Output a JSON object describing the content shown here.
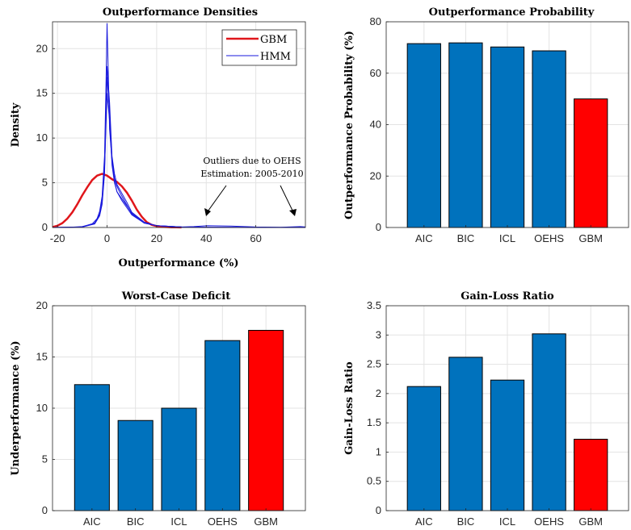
{
  "colors": {
    "blue": "#0072bd",
    "red": "#ff0000",
    "gbm_line": "#e0161b",
    "hmm_line": "#1a1add"
  },
  "chart_data": [
    {
      "id": "densities",
      "type": "line",
      "title": "Outperformance Densities",
      "xlabel": "Outperformance (%)",
      "ylabel": "Density",
      "xlim": [
        -22,
        80
      ],
      "ylim": [
        0,
        23
      ],
      "xticks": [
        "-20",
        "0",
        "20",
        "40",
        "60"
      ],
      "xtick_values": [
        -20,
        0,
        20,
        40,
        60
      ],
      "yticks": [
        "0",
        "5",
        "10",
        "15",
        "20"
      ],
      "ytick_values": [
        0,
        5,
        10,
        15,
        20
      ],
      "grid": true,
      "legend": {
        "placement": "top-right",
        "entries": [
          "GBM",
          "HMM"
        ]
      },
      "annotation": {
        "lines": [
          "Outliers due to OEHS",
          "Estimation: 2005-2010"
        ],
        "arrow_targets": [
          [
            37,
            0.5
          ],
          [
            77,
            0.5
          ]
        ]
      },
      "series": [
        {
          "name": "GBM",
          "color": "#e0161b",
          "x": [
            -22,
            -20,
            -18,
            -16,
            -14,
            -12,
            -10,
            -8,
            -6,
            -4,
            -2,
            0,
            2,
            4,
            6,
            8,
            10,
            12,
            14,
            16,
            18,
            20,
            22,
            24,
            26,
            28,
            30
          ],
          "y": [
            0.05,
            0.2,
            0.5,
            1.0,
            1.7,
            2.6,
            3.6,
            4.5,
            5.3,
            5.8,
            6.0,
            5.8,
            5.4,
            5.1,
            4.6,
            3.9,
            3.0,
            2.0,
            1.2,
            0.6,
            0.3,
            0.15,
            0.08,
            0.05,
            0.03,
            0.02,
            0.01
          ]
        },
        {
          "name": "HMM",
          "color": "#1a1add",
          "x": [
            -22,
            -15,
            -10,
            -6,
            -4,
            -3,
            -2,
            -1,
            -0.5,
            0,
            0.5,
            1,
            2,
            3,
            4,
            5,
            6,
            8,
            10,
            15,
            20,
            30,
            35,
            40,
            50,
            60,
            70,
            78,
            80
          ],
          "y": [
            0,
            0.02,
            0.1,
            0.4,
            1.0,
            1.8,
            3.5,
            8.0,
            15.0,
            22.8,
            17.5,
            11.0,
            7.5,
            5.5,
            4.6,
            4.0,
            3.5,
            2.5,
            1.5,
            0.5,
            0.2,
            0.05,
            0.1,
            0.2,
            0.15,
            0.05,
            0.02,
            0.1,
            0.05
          ]
        },
        {
          "name": "HMM",
          "color": "#1a1add",
          "x": [
            -22,
            -10,
            -5,
            -3,
            -2,
            -1,
            0,
            1,
            2,
            3,
            4,
            6,
            8,
            10,
            15,
            20,
            30,
            40,
            60,
            80
          ],
          "y": [
            0,
            0.05,
            0.5,
            1.5,
            3.0,
            7.0,
            18.0,
            14.0,
            8.0,
            6.0,
            4.8,
            3.8,
            2.8,
            1.7,
            0.6,
            0.2,
            0.05,
            0.02,
            0.01,
            0
          ]
        },
        {
          "name": "HMM",
          "color": "#1a1add",
          "x": [
            -22,
            -10,
            -5,
            -3,
            -2,
            -1,
            0,
            1,
            2,
            3,
            4,
            6,
            8,
            10,
            15,
            20,
            30,
            40,
            60,
            80
          ],
          "y": [
            0,
            0.05,
            0.4,
            1.3,
            2.6,
            6.0,
            16.8,
            13.0,
            7.5,
            5.2,
            4.0,
            3.0,
            2.2,
            1.4,
            0.5,
            0.2,
            0.05,
            0.02,
            0.01,
            0
          ]
        },
        {
          "name": "HMM",
          "color": "#1a1add",
          "x": [
            -22,
            -10,
            -5,
            -3,
            -2,
            -1,
            0,
            1,
            2,
            3,
            4,
            6,
            8,
            10,
            15,
            20,
            30,
            40,
            60,
            80
          ],
          "y": [
            0,
            0.05,
            0.5,
            1.4,
            2.8,
            6.5,
            15.0,
            12.0,
            7.0,
            5.0,
            4.0,
            3.2,
            2.4,
            1.6,
            0.5,
            0.2,
            0.05,
            0.02,
            0.01,
            0
          ]
        }
      ]
    },
    {
      "id": "probability",
      "type": "bar",
      "title": "Outperformance Probability",
      "xlabel": "",
      "ylabel": "Outperformance Probability (%)",
      "categories": [
        "AIC",
        "BIC",
        "ICL",
        "OEHS",
        "GBM"
      ],
      "values": [
        71.5,
        71.8,
        70.2,
        68.7,
        50.0
      ],
      "bar_colors": [
        "#0072bd",
        "#0072bd",
        "#0072bd",
        "#0072bd",
        "#ff0000"
      ],
      "ylim": [
        0,
        80
      ],
      "yticks": [
        "0",
        "20",
        "40",
        "60",
        "80"
      ],
      "ytick_values": [
        0,
        20,
        40,
        60,
        80
      ],
      "grid": true
    },
    {
      "id": "deficit",
      "type": "bar",
      "title": "Worst-Case Deficit",
      "xlabel": "",
      "ylabel": "Underperformance (%)",
      "categories": [
        "AIC",
        "BIC",
        "ICL",
        "OEHS",
        "GBM"
      ],
      "values": [
        12.3,
        8.8,
        10.0,
        16.6,
        17.6
      ],
      "bar_colors": [
        "#0072bd",
        "#0072bd",
        "#0072bd",
        "#0072bd",
        "#ff0000"
      ],
      "ylim": [
        0,
        20
      ],
      "yticks": [
        "0",
        "5",
        "10",
        "15",
        "20"
      ],
      "ytick_values": [
        0,
        5,
        10,
        15,
        20
      ],
      "grid": true
    },
    {
      "id": "gainloss",
      "type": "bar",
      "title": "Gain-Loss Ratio",
      "xlabel": "",
      "ylabel": "Gain-Loss Ratio",
      "categories": [
        "AIC",
        "BIC",
        "ICL",
        "OEHS",
        "GBM"
      ],
      "values": [
        2.12,
        2.62,
        2.23,
        3.02,
        1.22
      ],
      "bar_colors": [
        "#0072bd",
        "#0072bd",
        "#0072bd",
        "#0072bd",
        "#ff0000"
      ],
      "ylim": [
        0,
        3.5
      ],
      "yticks": [
        "0",
        "0.5",
        "1",
        "1.5",
        "2",
        "2.5",
        "3",
        "3.5"
      ],
      "ytick_values": [
        0,
        0.5,
        1,
        1.5,
        2,
        2.5,
        3,
        3.5
      ],
      "grid": true
    }
  ]
}
